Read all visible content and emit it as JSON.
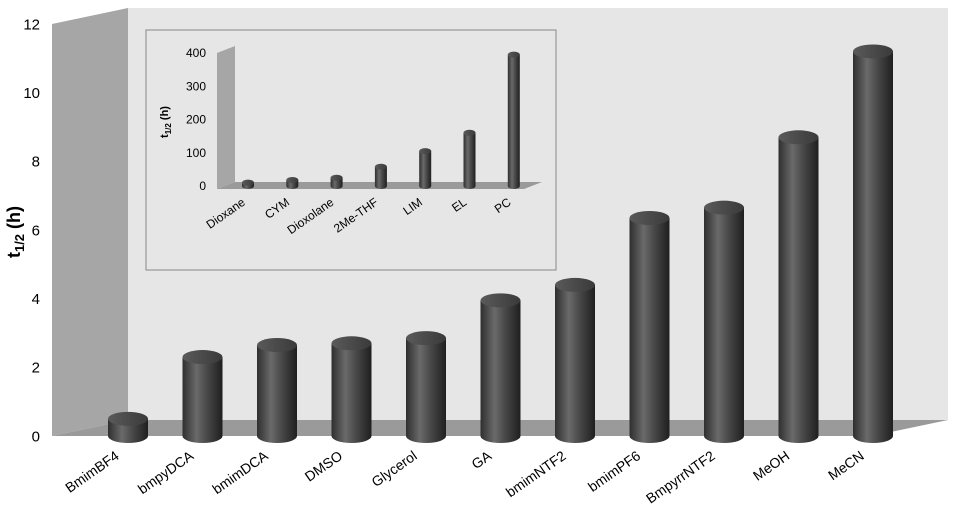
{
  "chart_data": [
    {
      "type": "bar",
      "title": "",
      "xlabel": "",
      "ylabel_main": "t",
      "ylabel_sub": "1/2",
      "ylabel_unit": " (h)",
      "ylim": [
        0,
        12
      ],
      "yticks": [
        0,
        2,
        4,
        6,
        8,
        10,
        12
      ],
      "categories": [
        "BmimBF4",
        "bmpyDCA",
        "bmimDCA",
        "DMSO",
        "Glycerol",
        "GA",
        "bmimNTF2",
        "bmimPF6",
        "BmpyrrNTF2",
        "MeOH",
        "MeCN"
      ],
      "values": [
        0.5,
        2.3,
        2.65,
        2.7,
        2.85,
        3.95,
        4.4,
        6.35,
        6.65,
        8.7,
        11.2
      ],
      "bar_color": "#4a4a4a",
      "wall_color": "#a0a0a0",
      "plot_bg": "#e6e6e6"
    },
    {
      "type": "bar",
      "title": "",
      "xlabel": "",
      "ylabel_main": "t",
      "ylabel_sub": "1/2",
      "ylabel_unit": " (h)",
      "ylim": [
        0,
        400
      ],
      "yticks": [
        0,
        100,
        200,
        300,
        400
      ],
      "categories": [
        "Dioxane",
        "CYM",
        "Dioxolane",
        "2Me-THF",
        "LIM",
        "EL",
        "PC"
      ],
      "values": [
        10,
        18,
        25,
        58,
        105,
        160,
        395
      ],
      "bar_color": "#4a4a4a",
      "wall_color": "#a0a0a0",
      "plot_bg": "#e6e6e6"
    }
  ]
}
